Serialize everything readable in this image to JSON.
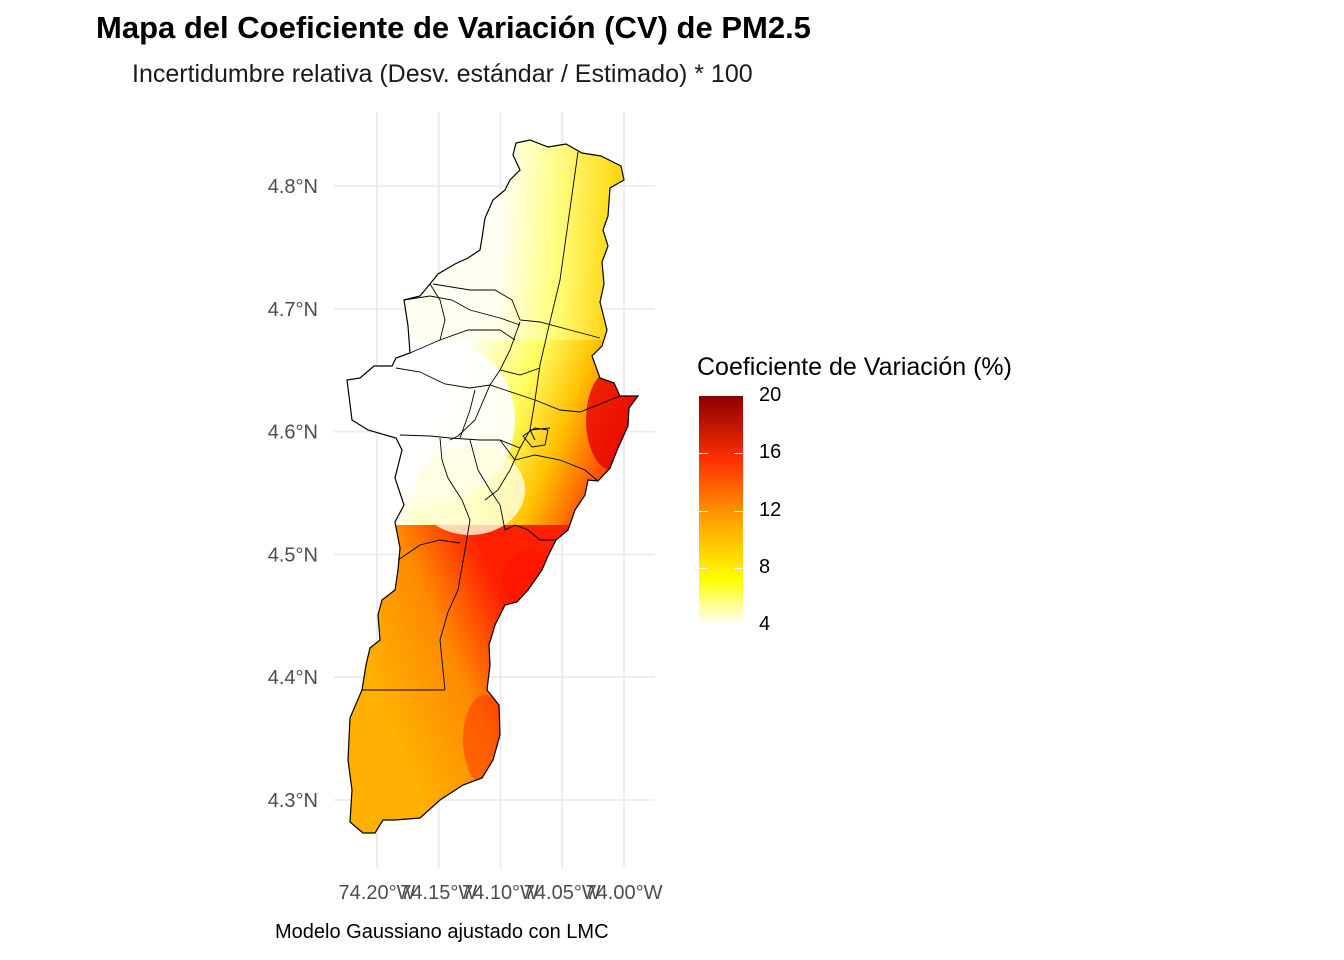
{
  "title": "Mapa del Coeficiente de Variación (CV) de PM2.5",
  "subtitle": "Incertidumbre relativa (Desv. estándar / Estimado) * 100",
  "caption": "Modelo Gaussiano ajustado con LMC",
  "legend": {
    "title": "Coeficiente de Variación (%)",
    "ticks": [
      "20",
      "16",
      "12",
      "8",
      "4"
    ],
    "range": [
      4,
      20
    ],
    "colors": [
      "#ffffff",
      "#ffff00",
      "#ffa500",
      "#ff3000",
      "#8b0000"
    ]
  },
  "axes": {
    "y_ticks": [
      "4.8°N",
      "4.7°N",
      "4.6°N",
      "4.5°N",
      "4.4°N",
      "4.3°N"
    ],
    "x_ticks": [
      "74.20°W",
      "74.15°W",
      "74.10°W",
      "74.05°W",
      "74.00°W"
    ]
  },
  "chart_data": {
    "type": "heatmap",
    "title": "Mapa del Coeficiente de Variación (CV) de PM2.5",
    "subtitle": "Incertidumbre relativa (Desv. estándar / Estimado) * 100",
    "xlabel": "",
    "ylabel": "",
    "x_ticks": [
      -74.2,
      -74.15,
      -74.1,
      -74.05,
      -74.0
    ],
    "y_ticks": [
      4.8,
      4.7,
      4.6,
      4.5,
      4.4,
      4.3
    ],
    "xlim": [
      -74.24,
      -73.97
    ],
    "ylim": [
      4.26,
      4.84
    ],
    "colorbar": {
      "label": "Coeficiente de Variación (%)",
      "min": 4,
      "max": 20,
      "ticks": [
        4,
        8,
        12,
        16,
        20
      ]
    },
    "grid": true,
    "legend_position": "right"
  }
}
